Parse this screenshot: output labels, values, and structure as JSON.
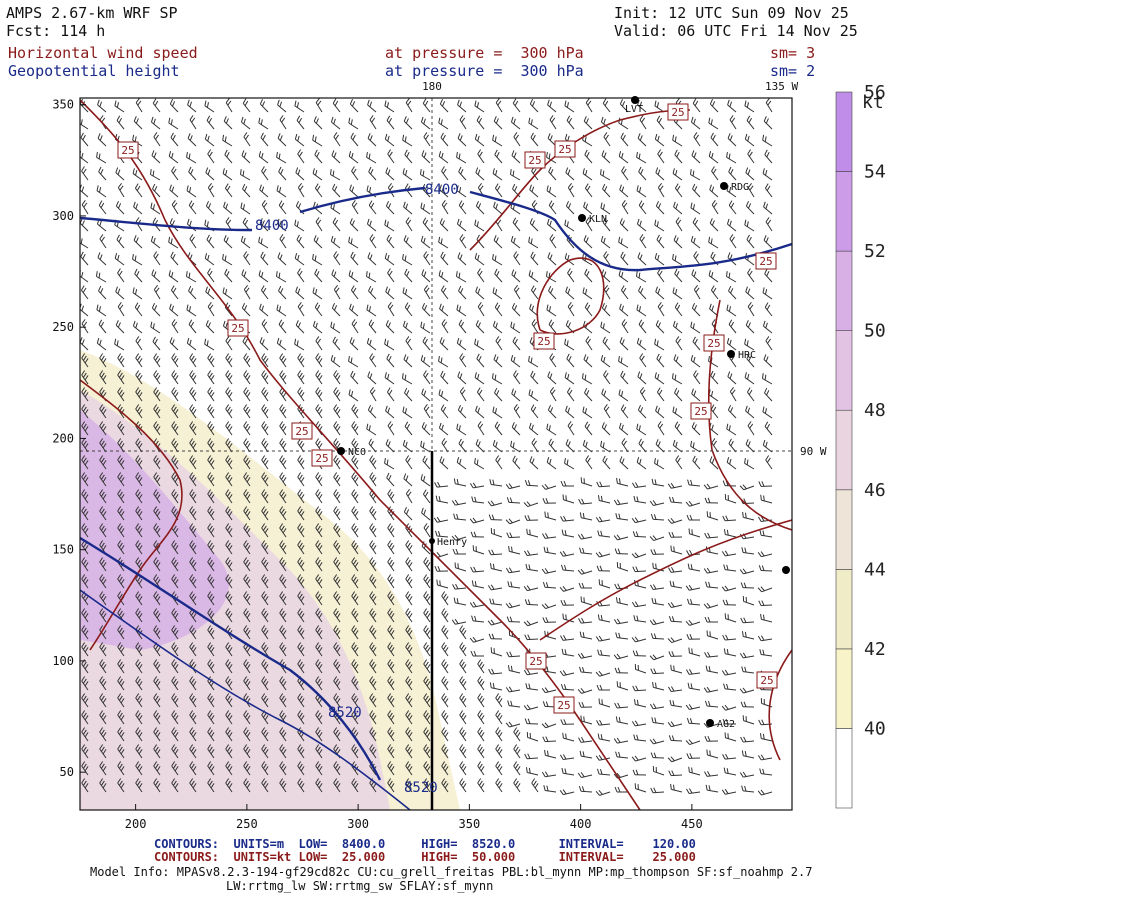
{
  "header": {
    "model": "AMPS 2.67-km WRF SP",
    "forecast": "Fcst: 114 h",
    "init": "Init: 12 UTC Sun 09 Nov 25",
    "valid": "Valid: 06 UTC Fri 14 Nov 25",
    "field1_name": "Horizontal wind speed",
    "field1_level": "at pressure =  300 hPa",
    "field1_sm": "sm= 3",
    "field2_name": "Geopotential height",
    "field2_level": "at pressure =  300 hPa",
    "field2_sm": "sm= 2"
  },
  "map": {
    "meridian_top_label": "180",
    "meridian_right_label": "135 W",
    "parallel_label": "90 W",
    "x_ticks": [
      200,
      250,
      300,
      350,
      400,
      450
    ],
    "y_ticks": [
      50,
      100,
      150,
      200,
      250,
      300,
      350
    ],
    "stations": [
      {
        "name": "NCO"
      },
      {
        "name": "Henry"
      },
      {
        "name": "KLN"
      },
      {
        "name": "RDG"
      },
      {
        "name": "HRC"
      },
      {
        "name": "AG2"
      },
      {
        "name": "LVT"
      }
    ],
    "height_contour_labels": [
      "8400",
      "8400",
      "8520",
      "8520"
    ],
    "speed_contour_label": "25"
  },
  "colorbar": {
    "unit": "kt",
    "levels": [
      40,
      42,
      44,
      46,
      48,
      50,
      52,
      54,
      56
    ],
    "colors": [
      "#ffffff",
      "#f8f3c8",
      "#f1ecc8",
      "#efe4d8",
      "#ead4e0",
      "#e3c3e3",
      "#d9b0e6",
      "#cc9ce8",
      "#c08ee8"
    ]
  },
  "footer": {
    "line1": "CONTOURS:  UNITS=m  LOW=  8400.0     HIGH=  8520.0      INTERVAL=    120.00",
    "line2": "CONTOURS:  UNITS=kt LOW=  25.000     HIGH=  50.000      INTERVAL=    25.000",
    "model_info": "Model Info: MPASv8.2.3-194-gf29cd82c CU:cu_grell_freitas PBL:bl_mynn MP:mp_thompson SF:sf_noahmp 2.7",
    "model_info2": "LW:rrtmg_lw SW:rrtmg_sw SFLAY:sf_mynn"
  }
}
